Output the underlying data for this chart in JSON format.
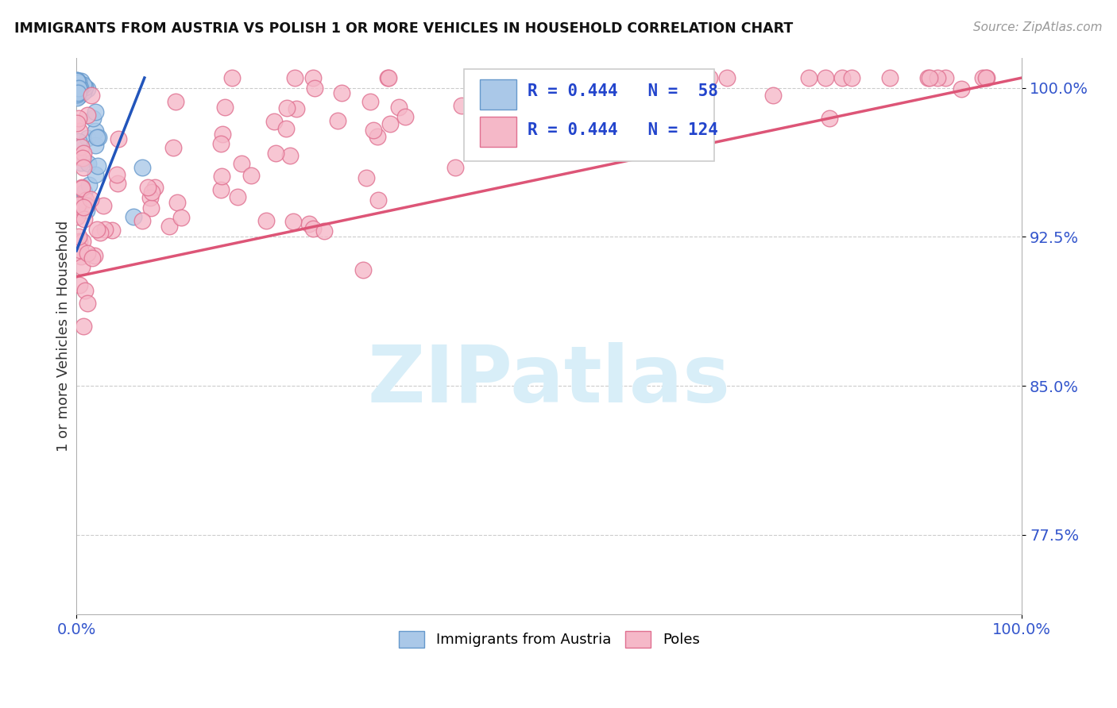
{
  "title": "IMMIGRANTS FROM AUSTRIA VS POLISH 1 OR MORE VEHICLES IN HOUSEHOLD CORRELATION CHART",
  "source": "Source: ZipAtlas.com",
  "ylabel": "1 or more Vehicles in Household",
  "xlim": [
    0.0,
    1.0
  ],
  "ylim": [
    0.735,
    1.015
  ],
  "yticks": [
    0.775,
    0.85,
    0.925,
    1.0
  ],
  "ytick_labels": [
    "77.5%",
    "85.0%",
    "92.5%",
    "100.0%"
  ],
  "xticks": [
    0.0,
    1.0
  ],
  "xtick_labels": [
    "0.0%",
    "100.0%"
  ],
  "background_color": "#ffffff",
  "grid_color": "#cccccc",
  "austria_color": "#aac8e8",
  "austria_edge_color": "#6699cc",
  "poland_color": "#f5b8c8",
  "poland_edge_color": "#e07090",
  "austria_R": 0.444,
  "austria_N": 58,
  "poland_R": 0.444,
  "poland_N": 124,
  "legend_label_austria": "Immigrants from Austria",
  "legend_label_poland": "Poles",
  "austria_trend_x": [
    0.0,
    0.072
  ],
  "austria_trend_y": [
    0.918,
    1.005
  ],
  "poland_trend_x": [
    0.0,
    1.0
  ],
  "poland_trend_y": [
    0.905,
    1.005
  ]
}
